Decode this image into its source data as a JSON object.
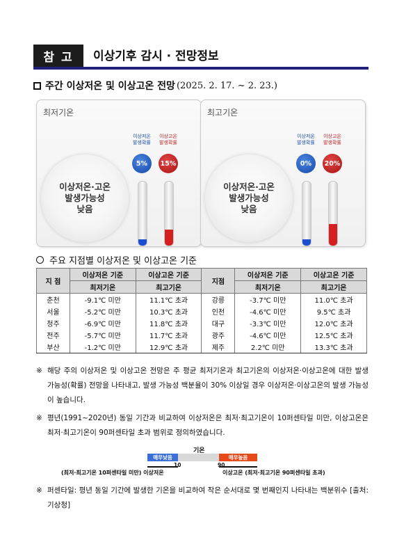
{
  "header": {
    "tag": "참 고",
    "title": "이상기후 감시 · 전망정보"
  },
  "section": {
    "title": "주간 이상저온 및 이상고온 전망",
    "period": "(2025. 2. 17. ~ 2. 23.)"
  },
  "panels": [
    {
      "title": "최저기온",
      "message": "이상저온·고온\n발생가능성\n낮음",
      "low_label": "이상저온\n발생확률",
      "high_label": "이상고온\n발생확률",
      "low_prob": "5%",
      "high_prob": "15%",
      "low_value": 0.05,
      "high_value": 0.15
    },
    {
      "title": "최고기온",
      "message": "이상저온·고온\n발생가능성\n낮음",
      "low_label": "이상저온\n발생확률",
      "high_label": "이상고온\n발생확률",
      "low_prob": "0%",
      "high_prob": "20%",
      "low_value": 0.0,
      "high_value": 0.2
    }
  ],
  "subsection": {
    "title": "주요 지점별 이상저온 및 이상고온 기준"
  },
  "table": {
    "header_station": "지 점",
    "header_station2": "지점",
    "header_low": "이상저온 기준",
    "header_high": "이상고온 기준",
    "sub_low": "최저기온",
    "sub_high": "최고기온",
    "rows": [
      [
        "춘천",
        "-9.1℃ 미만",
        "11.1℃ 초과",
        "강릉",
        "-3.7℃ 미만",
        "11.0℃ 초과"
      ],
      [
        "서울",
        "-5.2℃ 미만",
        "10.3℃ 초과",
        "인천",
        "-4.6℃ 미만",
        "9.5℃ 초과"
      ],
      [
        "청주",
        "-6.9℃ 미만",
        "11.8℃ 초과",
        "대구",
        "-3.3℃ 미만",
        "12.0℃ 초과"
      ],
      [
        "전주",
        "-5.7℃ 미만",
        "11.7℃ 초과",
        "광주",
        "-4.6℃ 미만",
        "12.5℃ 초과"
      ],
      [
        "부산",
        "-1.2℃ 미만",
        "12.9℃ 초과",
        "제주",
        "2.2℃ 미만",
        "13.3℃ 초과"
      ]
    ]
  },
  "notes": {
    "marker": "※",
    "note1": "해당 주의 이상저온 및 이상고온 전망은 주 평균 최저기온과 최고기온의 이상저온·이상고온에 대한 발생 가능성(확률) 전망을 나타내고, 발생 가능성 백분율이 30% 이상일 경우 이상저온·이상고온의 발생 가능성이 높습니다.",
    "note2": "평년(1991~2020년) 동일 기간과 비교하여 이상저온은 최저·최고기온이 10퍼센타일 미만, 이상고온은 최저·최고기온이 90퍼센타일 초과 범위로 정의하였습니다.",
    "note3": "퍼센타일: 평년 동일 기간에 발생한 기온을 비교하여 작은 순서대로 몇 번째인지 나타내는 백분위수  [출처: 기상청]"
  },
  "diagram": {
    "title": "기온",
    "low_box": "매우낮음",
    "high_box": "매우높음",
    "low_num": "10",
    "high_num": "90",
    "low_caption": "(최저·최고기온 10퍼센타일 미만) 이상저온",
    "high_caption": "이상고온 (최저·최고기온 90퍼센타일 초과)"
  }
}
